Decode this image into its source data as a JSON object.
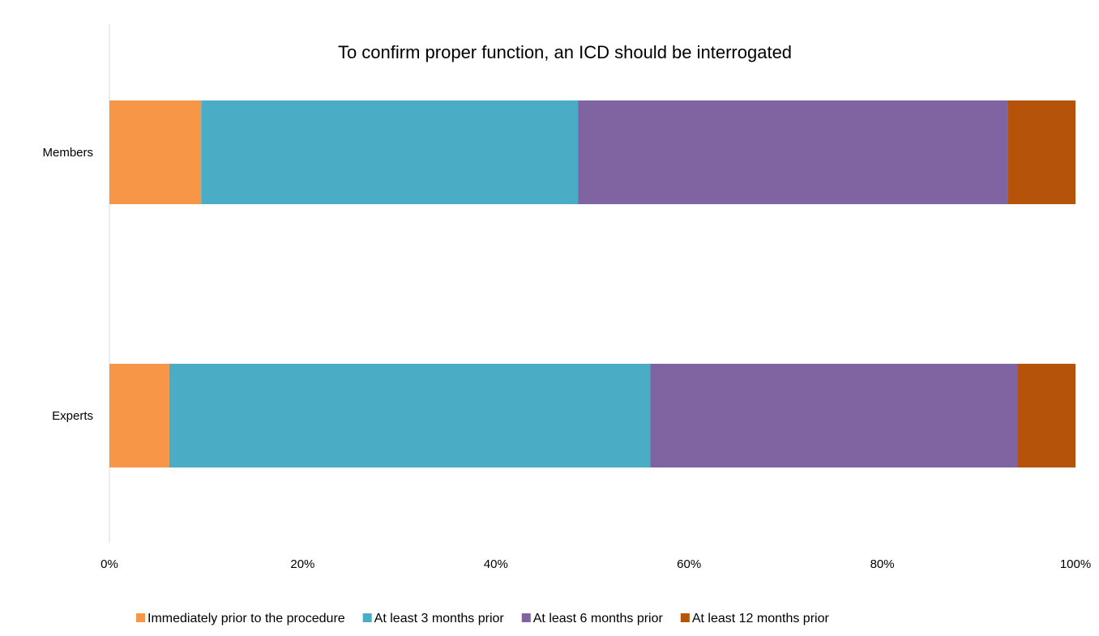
{
  "chart_data": {
    "type": "bar",
    "orientation": "horizontal",
    "stacked": "percent",
    "title": "To confirm proper function, an ICD should be interrogated",
    "categories": [
      "Members",
      "Experts"
    ],
    "series": [
      {
        "name": "Immediately prior to the procedure",
        "color": "#F79646",
        "values": [
          9.5,
          6.2
        ]
      },
      {
        "name": "At least 3 months prior",
        "color": "#4BACC6",
        "values": [
          39.0,
          49.8
        ]
      },
      {
        "name": "At least 6 months prior",
        "color": "#8064A2",
        "values": [
          44.5,
          38.0
        ]
      },
      {
        "name": "At least 12 months prior",
        "color": "#B45309",
        "values": [
          7.0,
          6.0
        ]
      }
    ],
    "xticks": [
      "0%",
      "20%",
      "40%",
      "60%",
      "80%",
      "100%"
    ],
    "xlim": [
      0,
      100
    ],
    "grid": false,
    "legend_position": "bottom"
  }
}
